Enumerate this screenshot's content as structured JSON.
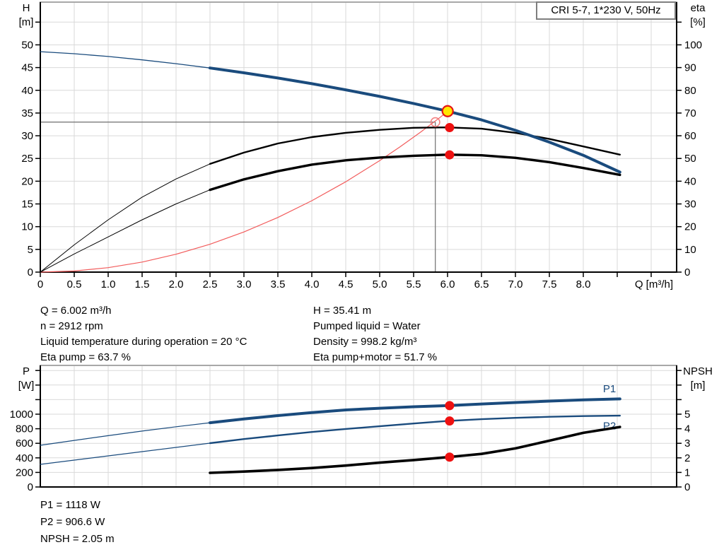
{
  "title_box": "CRI 5-7, 1*230 V, 50Hz",
  "info_top": {
    "left": [
      "Q = 6.002 m³/h",
      "n = 2912 rpm",
      "Liquid temperature during operation = 20 °C",
      "Eta pump = 63.7 %"
    ],
    "right": [
      "H = 35.41 m",
      "Pumped liquid = Water",
      "Density = 998.2 kg/m³",
      "Eta pump+motor = 51.7 %"
    ]
  },
  "info_bottom": [
    "P1 = 1118 W",
    "P2 = 906.6 W",
    "NPSH = 2.05 m"
  ],
  "style": {
    "grid": "#D9D9D9",
    "axis": "#000000",
    "frame_top": "#A8A8A8",
    "crosshair": "#6E6E6E",
    "blue": "#1A4B7D",
    "black": "#000000",
    "system_red": "#F25C5C",
    "marker_red": "#EE1111",
    "marker_yellow": "#FFE600",
    "ring_red": "#F28080"
  },
  "chart_data": [
    {
      "type": "line",
      "title": "CRI 5-7, 1*230 V, 50Hz",
      "x": {
        "label": "Q [m³/h]",
        "min": 0,
        "max": 9.375,
        "step": 0.5,
        "label_max": 8.0,
        "grid_max": 9.0,
        "decimals": 1
      },
      "left": {
        "label": [
          "H",
          "[m]"
        ],
        "min": 0,
        "max": 59.4,
        "step": 5,
        "label_max": 50,
        "grid_max": 55,
        "decimals": 0
      },
      "right": {
        "label": [
          "eta",
          "[%]"
        ],
        "min": 0,
        "max": 118.8,
        "step": 10,
        "label_max": 100,
        "grid_max": 110,
        "decimals": 0
      },
      "crosshair": {
        "q": 5.82,
        "v": 33,
        "axis": "left"
      },
      "series": [
        {
          "name": "system-curve",
          "axis": "left",
          "color": "#F25C5C",
          "width": 1.2,
          "points": [
            [
              0,
              0
            ],
            [
              0.5,
              0.25
            ],
            [
              1,
              0.98
            ],
            [
              1.5,
              2.21
            ],
            [
              2,
              3.93
            ],
            [
              2.5,
              6.13
            ],
            [
              3,
              8.83
            ],
            [
              3.5,
              12.02
            ],
            [
              4,
              15.7
            ],
            [
              4.5,
              19.87
            ],
            [
              5,
              24.53
            ],
            [
              5.3,
              27.57
            ],
            [
              5.6,
              30.77
            ],
            [
              5.82,
              33.24
            ],
            [
              5.9,
              34.16
            ],
            [
              6.002,
              35.41
            ]
          ]
        },
        {
          "name": "eta-pump",
          "axis": "right",
          "color": "#000000",
          "width": 2.4,
          "thin_width": 1.0,
          "thin_until": 2.5,
          "points": [
            [
              0,
              0
            ],
            [
              0.5,
              12
            ],
            [
              1,
              23
            ],
            [
              1.5,
              33
            ],
            [
              2,
              41
            ],
            [
              2.5,
              47.6
            ],
            [
              3,
              52.6
            ],
            [
              3.5,
              56.6
            ],
            [
              4,
              59.4
            ],
            [
              4.5,
              61.3
            ],
            [
              5,
              62.6
            ],
            [
              5.5,
              63.5
            ],
            [
              6.002,
              63.7
            ],
            [
              6.5,
              63.1
            ],
            [
              7,
              61.3
            ],
            [
              7.5,
              58.6
            ],
            [
              8,
              55.3
            ],
            [
              8.54,
              51.7
            ]
          ]
        },
        {
          "name": "eta-pump-plus-motor",
          "axis": "right",
          "color": "#000000",
          "width": 3.4,
          "thin_width": 1.0,
          "thin_until": 2.5,
          "points": [
            [
              0,
              0
            ],
            [
              0.5,
              8
            ],
            [
              1,
              15.5
            ],
            [
              1.5,
              23
            ],
            [
              2,
              30
            ],
            [
              2.5,
              36.2
            ],
            [
              3,
              40.8
            ],
            [
              3.5,
              44.4
            ],
            [
              4,
              47.3
            ],
            [
              4.5,
              49.2
            ],
            [
              5,
              50.4
            ],
            [
              5.5,
              51.2
            ],
            [
              6.002,
              51.7
            ],
            [
              6.5,
              51.4
            ],
            [
              7,
              50.3
            ],
            [
              7.5,
              48.4
            ],
            [
              8,
              45.8
            ],
            [
              8.54,
              42.8
            ]
          ]
        },
        {
          "name": "hq-pump-curve",
          "axis": "left",
          "color": "#1A4B7D",
          "width": 4.0,
          "thin_width": 1.3,
          "thin_until": 2.5,
          "points": [
            [
              0,
              48.5
            ],
            [
              0.5,
              48.05
            ],
            [
              1,
              47.45
            ],
            [
              1.5,
              46.7
            ],
            [
              2,
              45.85
            ],
            [
              2.5,
              44.9
            ],
            [
              3,
              43.85
            ],
            [
              3.5,
              42.7
            ],
            [
              4,
              41.45
            ],
            [
              4.5,
              40.1
            ],
            [
              5,
              38.65
            ],
            [
              5.5,
              37.1
            ],
            [
              6.002,
              35.41
            ],
            [
              6.5,
              33.5
            ],
            [
              7,
              31.2
            ],
            [
              7.5,
              28.6
            ],
            [
              8,
              25.7
            ],
            [
              8.54,
              22.0
            ]
          ]
        }
      ],
      "markers": [
        {
          "name": "requested-duty-point-ring",
          "q": 5.82,
          "v": 33,
          "axis": "left",
          "r": 6.2,
          "fill": "none",
          "stroke": "#F28080",
          "stroke_width": 1.6
        },
        {
          "name": "eta-pump-operating-dot",
          "q": 6.03,
          "v": 63.6,
          "axis": "right",
          "r": 6.5,
          "fill": "#EE1111"
        },
        {
          "name": "eta-pump-motor-operating-dot",
          "q": 6.03,
          "v": 51.6,
          "axis": "right",
          "r": 6.5,
          "fill": "#EE1111"
        },
        {
          "name": "duty-point-dot",
          "q": 6.002,
          "v": 35.41,
          "axis": "left",
          "r": 7.5,
          "fill": "#FFE600",
          "stroke": "#E51414",
          "stroke_width": 2.2
        }
      ]
    },
    {
      "type": "line",
      "title": "",
      "x": {
        "label": "",
        "min": 0,
        "max": 9.375,
        "step": 0.5,
        "label_max": -1,
        "grid_max": 9.0,
        "decimals": 1
      },
      "left": {
        "label": [
          "P",
          "[W]"
        ],
        "min": 0,
        "max": 1670,
        "step": 200,
        "label_max": 1000,
        "grid_max": 1600,
        "decimals": 0
      },
      "right": {
        "label": [
          "NPSH",
          "[m]"
        ],
        "min": 0,
        "max": 8.35,
        "step": 1,
        "label_max": 5,
        "grid_max": 8,
        "decimals": 0
      },
      "series": [
        {
          "name": "p1-power-curve",
          "axis": "left",
          "color": "#1A4B7D",
          "width": 4.0,
          "thin_width": 1.2,
          "thin_until": 2.5,
          "label": "P1",
          "label_at": [
            8.29,
            1300
          ],
          "points": [
            [
              0,
              573
            ],
            [
              0.5,
              640
            ],
            [
              1,
              705
            ],
            [
              1.5,
              768
            ],
            [
              2,
              827
            ],
            [
              2.5,
              883
            ],
            [
              3,
              934
            ],
            [
              3.5,
              981
            ],
            [
              4,
              1022
            ],
            [
              4.5,
              1058
            ],
            [
              5,
              1082
            ],
            [
              5.5,
              1102
            ],
            [
              6.002,
              1118
            ],
            [
              6.5,
              1140
            ],
            [
              7,
              1160
            ],
            [
              7.5,
              1180
            ],
            [
              8,
              1196
            ],
            [
              8.54,
              1210
            ]
          ]
        },
        {
          "name": "p2-power-curve",
          "axis": "left",
          "color": "#1A4B7D",
          "width": 2.4,
          "thin_width": 1.2,
          "thin_until": 2.5,
          "label": "P2",
          "label_at": [
            8.29,
            790
          ],
          "points": [
            [
              0,
              311
            ],
            [
              0.5,
              369
            ],
            [
              1,
              427
            ],
            [
              1.5,
              485
            ],
            [
              2,
              544
            ],
            [
              2.5,
              602
            ],
            [
              3,
              658
            ],
            [
              3.5,
              708
            ],
            [
              4,
              755
            ],
            [
              4.5,
              797
            ],
            [
              5,
              834
            ],
            [
              5.5,
              872
            ],
            [
              6.002,
              906.6
            ],
            [
              6.5,
              931
            ],
            [
              7,
              950
            ],
            [
              7.5,
              964
            ],
            [
              8,
              974
            ],
            [
              8.54,
              980
            ]
          ]
        },
        {
          "name": "npsh-curve",
          "axis": "right",
          "color": "#000000",
          "width": 3.6,
          "points": [
            [
              2.5,
              0.97
            ],
            [
              3,
              1.06
            ],
            [
              3.5,
              1.17
            ],
            [
              4,
              1.3
            ],
            [
              4.5,
              1.47
            ],
            [
              5,
              1.67
            ],
            [
              5.5,
              1.85
            ],
            [
              6.002,
              2.05
            ],
            [
              6.5,
              2.27
            ],
            [
              7,
              2.65
            ],
            [
              7.5,
              3.18
            ],
            [
              8,
              3.72
            ],
            [
              8.54,
              4.12
            ]
          ]
        }
      ],
      "markers": [
        {
          "name": "p1-operating-dot",
          "q": 6.03,
          "v": 1118,
          "axis": "left",
          "r": 6.5,
          "fill": "#EE1111"
        },
        {
          "name": "p2-operating-dot",
          "q": 6.03,
          "v": 906.6,
          "axis": "left",
          "r": 6.5,
          "fill": "#EE1111"
        },
        {
          "name": "npsh-operating-dot",
          "q": 6.03,
          "v": 2.05,
          "axis": "right",
          "r": 6.5,
          "fill": "#EE1111"
        }
      ]
    }
  ]
}
